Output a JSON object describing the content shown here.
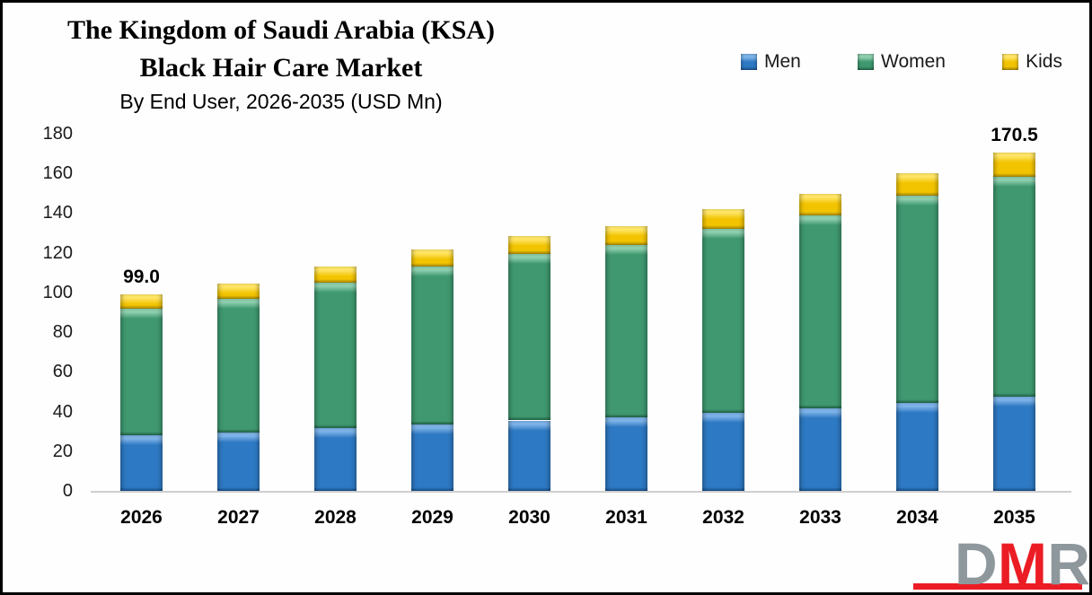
{
  "title": {
    "line1": "The Kingdom of Saudi Arabia (KSA)",
    "line2": "Black Hair Care Market",
    "subtitle": "By End User, 2026-2035 (USD Mn)"
  },
  "legend": {
    "items": [
      {
        "label": "Men",
        "color": "#2e79c3"
      },
      {
        "label": "Women",
        "color": "#3f9870"
      },
      {
        "label": "Kids",
        "color": "#f2c400"
      }
    ]
  },
  "chart_data": {
    "type": "bar",
    "stacked": true,
    "title": "The Kingdom of Saudi Arabia (KSA) Black Hair Care Market",
    "subtitle": "By End User, 2026-2035 (USD Mn)",
    "xlabel": "",
    "ylabel": "",
    "ylim": [
      0,
      180
    ],
    "y_ticks": [
      0,
      20,
      40,
      60,
      80,
      100,
      120,
      140,
      160,
      180
    ],
    "grid": false,
    "legend_position": "top-right",
    "categories": [
      "2026",
      "2027",
      "2028",
      "2029",
      "2030",
      "2031",
      "2032",
      "2033",
      "2034",
      "2035"
    ],
    "series": [
      {
        "name": "Men",
        "color": "#2e79c3",
        "color_light": "#7db3e8",
        "color_dark": "#1a548f",
        "values": [
          28.0,
          29.5,
          31.5,
          33.5,
          35.5,
          37.0,
          39.5,
          41.5,
          44.5,
          47.5
        ]
      },
      {
        "name": "Women",
        "color": "#3f9870",
        "color_light": "#8ecfae",
        "color_dark": "#23684a",
        "values": [
          64.0,
          67.5,
          73.5,
          79.5,
          84.0,
          87.0,
          92.5,
          97.5,
          104.5,
          111.0
        ]
      },
      {
        "name": "Kids",
        "color": "#f2c400",
        "color_light": "#ffe566",
        "color_dark": "#ad8a00",
        "values": [
          7.0,
          7.5,
          8.0,
          8.5,
          9.0,
          9.5,
          10.0,
          10.5,
          11.0,
          12.0
        ]
      }
    ],
    "totals": [
      99.0,
      104.5,
      113.0,
      121.5,
      128.5,
      133.5,
      142.0,
      149.5,
      160.0,
      170.5
    ],
    "data_labels": [
      {
        "category": "2026",
        "text": "99.0"
      },
      {
        "category": "2035",
        "text": "170.5"
      }
    ]
  },
  "logo": {
    "letters": [
      {
        "char": "D",
        "color": "#8d979c"
      },
      {
        "char": "M",
        "color": "#ec1c24"
      },
      {
        "char": "R",
        "color": "#8d979c"
      }
    ],
    "bar_color": "#ec1c24"
  }
}
